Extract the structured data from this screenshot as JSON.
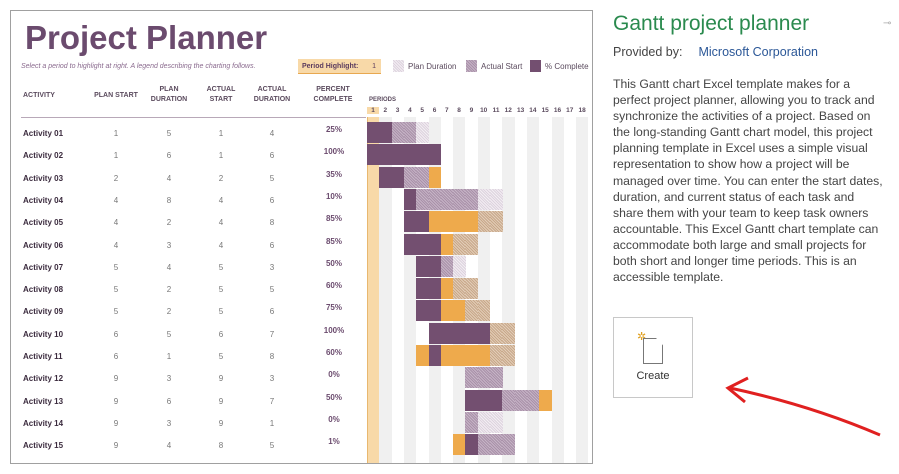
{
  "preview": {
    "title": "Project Planner",
    "hint": "Select a period to highlight at right.  A legend describing the charting follows.",
    "period_highlight_label": "Period Highlight:",
    "period_highlight_value": "1",
    "legend": [
      "Plan Duration",
      "Actual Start",
      "% Complete"
    ],
    "headers": [
      "ACTIVITY",
      "PLAN START",
      "PLAN DURATION",
      "ACTUAL START",
      "ACTUAL DURATION",
      "PERCENT COMPLETE"
    ],
    "periods_label": "PERIODS",
    "periods": [
      "1",
      "2",
      "3",
      "4",
      "5",
      "6",
      "7",
      "8",
      "9",
      "10",
      "11",
      "12",
      "13",
      "14",
      "15",
      "16",
      "17",
      "18"
    ],
    "colors": {
      "dark": "#734f70",
      "orange": "#eeaa4c",
      "highlight": "#f8d9a8",
      "title": "#6b4b6e"
    },
    "rows": [
      {
        "name": "Activity 01",
        "ps": "1",
        "pd": "5",
        "as": "1",
        "ad": "4",
        "pct": "25%"
      },
      {
        "name": "Activity 02",
        "ps": "1",
        "pd": "6",
        "as": "1",
        "ad": "6",
        "pct": "100%"
      },
      {
        "name": "Activity 03",
        "ps": "2",
        "pd": "4",
        "as": "2",
        "ad": "5",
        "pct": "35%"
      },
      {
        "name": "Activity 04",
        "ps": "4",
        "pd": "8",
        "as": "4",
        "ad": "6",
        "pct": "10%"
      },
      {
        "name": "Activity 05",
        "ps": "4",
        "pd": "2",
        "as": "4",
        "ad": "8",
        "pct": "85%"
      },
      {
        "name": "Activity 06",
        "ps": "4",
        "pd": "3",
        "as": "4",
        "ad": "6",
        "pct": "85%"
      },
      {
        "name": "Activity 07",
        "ps": "5",
        "pd": "4",
        "as": "5",
        "ad": "3",
        "pct": "50%"
      },
      {
        "name": "Activity 08",
        "ps": "5",
        "pd": "2",
        "as": "5",
        "ad": "5",
        "pct": "60%"
      },
      {
        "name": "Activity 09",
        "ps": "5",
        "pd": "2",
        "as": "5",
        "ad": "6",
        "pct": "75%"
      },
      {
        "name": "Activity 10",
        "ps": "6",
        "pd": "5",
        "as": "6",
        "ad": "7",
        "pct": "100%"
      },
      {
        "name": "Activity 11",
        "ps": "6",
        "pd": "1",
        "as": "5",
        "ad": "8",
        "pct": "60%"
      },
      {
        "name": "Activity 12",
        "ps": "9",
        "pd": "3",
        "as": "9",
        "ad": "3",
        "pct": "0%"
      },
      {
        "name": "Activity 13",
        "ps": "9",
        "pd": "6",
        "as": "9",
        "ad": "7",
        "pct": "50%"
      },
      {
        "name": "Activity 14",
        "ps": "9",
        "pd": "3",
        "as": "9",
        "ad": "1",
        "pct": "0%"
      },
      {
        "name": "Activity 15",
        "ps": "9",
        "pd": "4",
        "as": "8",
        "ad": "5",
        "pct": "1%"
      }
    ]
  },
  "side": {
    "title": "Gantt project planner",
    "provided_by_label": "Provided by:",
    "provider": "Microsoft Corporation",
    "description": "This Gantt chart Excel template makes for a perfect project planner, allowing you to track and synchronize the activities of a project. Based on the long-standing Gantt chart model, this project planning template in Excel uses a simple visual representation to show how a project will be managed over time. You can enter the start dates, duration, and current status of each task and share them with your team to keep task owners accountable. This Excel Gantt chart template can accommodate both large and small projects for both short and longer time periods. This is an accessible template.",
    "create_label": "Create",
    "pin_icon": "pin-icon"
  }
}
